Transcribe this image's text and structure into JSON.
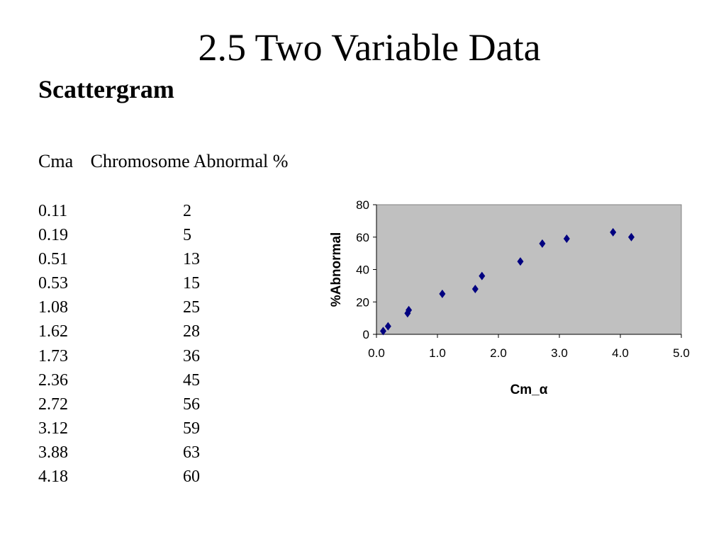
{
  "slide": {
    "title": "2.5 Two Variable Data",
    "subtitle": "Scattergram"
  },
  "table": {
    "headers": [
      "Cma",
      "Chromosome Abnormal %"
    ],
    "rows": [
      [
        "0.11",
        "2"
      ],
      [
        "0.19",
        "5"
      ],
      [
        "0.51",
        "13"
      ],
      [
        "0.53",
        "15"
      ],
      [
        "1.08",
        "25"
      ],
      [
        "1.62",
        "28"
      ],
      [
        "1.73",
        "36"
      ],
      [
        "2.36",
        "45"
      ],
      [
        "2.72",
        "56"
      ],
      [
        "3.12",
        "59"
      ],
      [
        "3.88",
        "63"
      ],
      [
        "4.18",
        "60"
      ]
    ]
  },
  "chart_data": {
    "type": "scatter",
    "xlabel": "Cm_α",
    "ylabel": "%Abnormal",
    "xlim": [
      0,
      5
    ],
    "ylim": [
      0,
      80
    ],
    "xticks": [
      "0.0",
      "1.0",
      "2.0",
      "3.0",
      "4.0",
      "5.0"
    ],
    "yticks": [
      "0",
      "20",
      "40",
      "60",
      "80"
    ],
    "x": [
      0.11,
      0.19,
      0.51,
      0.53,
      1.08,
      1.62,
      1.73,
      2.36,
      2.72,
      3.12,
      3.88,
      4.18
    ],
    "y": [
      2,
      5,
      13,
      15,
      25,
      28,
      36,
      45,
      56,
      59,
      63,
      60
    ],
    "plot_area_color": "#c0c0c0",
    "marker": "diamond",
    "marker_color": "#000080",
    "grid": false,
    "legend": "none"
  }
}
